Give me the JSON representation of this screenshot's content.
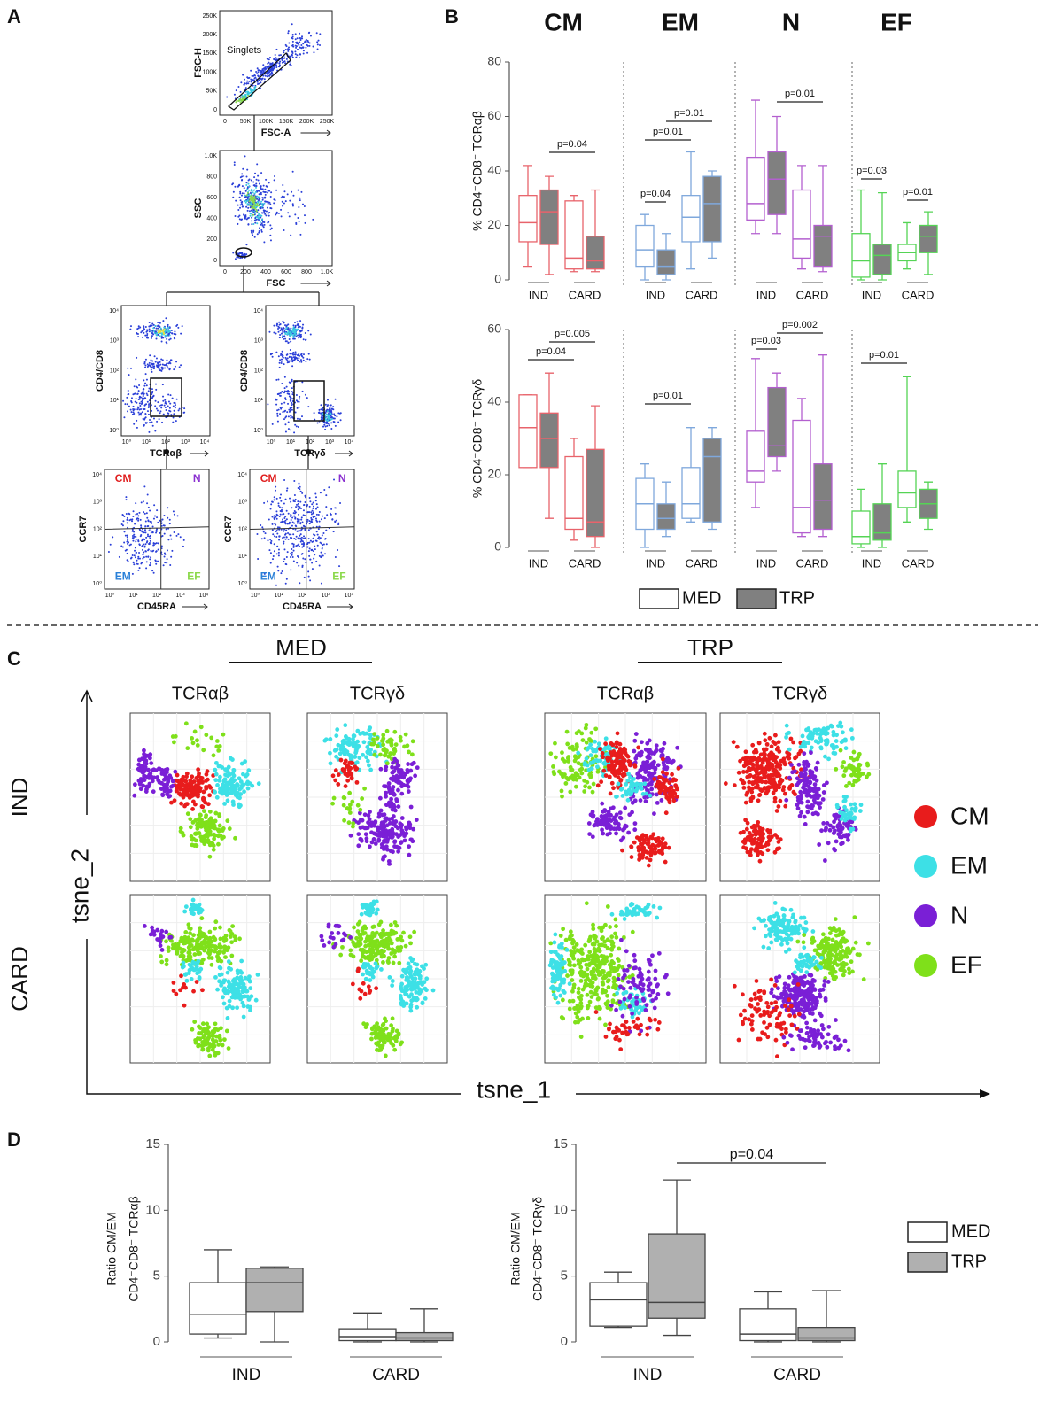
{
  "panel_labels": [
    "A",
    "B",
    "C",
    "D"
  ],
  "panel_a": {
    "plots": [
      {
        "ylabel": "FSC-H",
        "xlabel": "FSC-A",
        "gate": "Singlets",
        "yticks": [
          "250K",
          "200K",
          "150K",
          "100K",
          "50K",
          "0"
        ],
        "xticks": [
          "0",
          "50K",
          "100K",
          "150K",
          "200K",
          "250K"
        ]
      },
      {
        "ylabel": "SSC",
        "xlabel": "FSC",
        "yticks": [
          "1.0K",
          "800",
          "600",
          "400",
          "200",
          "0"
        ],
        "xticks": [
          "0",
          "200",
          "400",
          "600",
          "800",
          "1.0K"
        ]
      },
      {
        "ylabel": "CD4/CD8",
        "xlabel": "TCRαβ",
        "yticks": [
          "10⁴",
          "10³",
          "10²",
          "10¹",
          "10⁰"
        ],
        "xticks": [
          "10⁰",
          "10¹",
          "10²",
          "10³",
          "10⁴"
        ]
      },
      {
        "ylabel": "CD4/CD8",
        "xlabel": "TCRγδ",
        "yticks": [
          "10⁴",
          "10³",
          "10²",
          "10¹",
          "10⁰"
        ],
        "xticks": [
          "10⁰",
          "10¹",
          "10²",
          "10³",
          "10⁴"
        ]
      },
      {
        "ylabel": "CCR7",
        "xlabel": "CD45RA",
        "quadrants": [
          "CM",
          "N",
          "EM",
          "EF"
        ],
        "yticks": [
          "10⁴",
          "10³",
          "10²",
          "10¹",
          "10⁰"
        ],
        "xticks": [
          "10⁰",
          "10¹",
          "10²",
          "10³",
          "10⁴"
        ]
      },
      {
        "ylabel": "CCR7",
        "xlabel": "CD45RA",
        "quadrants": [
          "CM",
          "N",
          "EM",
          "EF"
        ],
        "yticks": [
          "10⁴",
          "10³",
          "10²",
          "10¹",
          "10⁰"
        ],
        "xticks": [
          "10⁰",
          "10¹",
          "10²",
          "10³",
          "10⁴"
        ]
      }
    ]
  },
  "panel_c": {
    "columns": [
      "MED",
      "TRP"
    ],
    "subcolumns": [
      "TCRαβ",
      "TCRγδ"
    ],
    "rows": [
      "IND",
      "CARD"
    ],
    "xlabel": "tsne_1",
    "ylabel": "tsne_2",
    "legend": [
      {
        "name": "CM",
        "color": "#e81c1c"
      },
      {
        "name": "EM",
        "color": "#3de0e6"
      },
      {
        "name": "N",
        "color": "#7a1fd6"
      },
      {
        "name": "EF",
        "color": "#7fe01a"
      }
    ]
  },
  "chart_data": [
    {
      "type": "box",
      "ylabel": "% CD4⁻CD8⁻ TCRαβ",
      "groups": [
        "CM",
        "EM",
        "N",
        "EF"
      ],
      "group_colors": [
        "#e8636b",
        "#7fa8dc",
        "#b35fcf",
        "#55d455"
      ],
      "categories": [
        "IND",
        "CARD"
      ],
      "series": [
        {
          "color": "#ffffff"
        },
        {
          "color": "#808080"
        }
      ],
      "ylim": [
        0,
        80
      ],
      "yticks": [
        0,
        20,
        40,
        60,
        80
      ],
      "boxes": [
        [
          [
            {
              "min": 5,
              "q1": 14,
              "median": 21,
              "q3": 31,
              "max": 42
            },
            {
              "min": 2,
              "q1": 13,
              "median": 25,
              "q3": 33,
              "max": 38
            }
          ],
          [
            {
              "min": 3,
              "q1": 4,
              "median": 8,
              "q3": 29,
              "max": 31
            },
            {
              "min": 3,
              "q1": 4,
              "median": 7,
              "q3": 16,
              "max": 33
            }
          ]
        ],
        [
          [
            {
              "min": 0,
              "q1": 5,
              "median": 11,
              "q3": 20,
              "max": 24
            },
            {
              "min": 0,
              "q1": 2,
              "median": 5,
              "q3": 11,
              "max": 17
            }
          ],
          [
            {
              "min": 4,
              "q1": 14,
              "median": 23,
              "q3": 31,
              "max": 47
            },
            {
              "min": 8,
              "q1": 14,
              "median": 28,
              "q3": 38,
              "max": 40
            }
          ]
        ],
        [
          [
            {
              "min": 17,
              "q1": 22,
              "median": 28,
              "q3": 45,
              "max": 66
            },
            {
              "min": 17,
              "q1": 24,
              "median": 37,
              "q3": 47,
              "max": 60
            }
          ],
          [
            {
              "min": 4,
              "q1": 8,
              "median": 15,
              "q3": 33,
              "max": 42
            },
            {
              "min": 3,
              "q1": 5,
              "median": 16,
              "q3": 20,
              "max": 42
            }
          ]
        ],
        [
          [
            {
              "min": 0,
              "q1": 1,
              "median": 7,
              "q3": 17,
              "max": 33
            },
            {
              "min": 0,
              "q1": 2,
              "median": 9,
              "q3": 13,
              "max": 32
            }
          ],
          [
            {
              "min": 4,
              "q1": 7,
              "median": 10,
              "q3": 13,
              "max": 21
            },
            {
              "min": 2,
              "q1": 10,
              "median": 16,
              "q3": 20,
              "max": 25
            }
          ]
        ]
      ],
      "annotations": [
        "p=0.04",
        "p=0.04",
        "p=0.01",
        "p=0.01",
        "p=0.01",
        "p=0.03",
        "p=0.01"
      ]
    },
    {
      "type": "box",
      "ylabel": "% CD4⁻CD8⁻ TCRγδ",
      "group_colors": [
        "#e8636b",
        "#7fa8dc",
        "#b35fcf",
        "#55d455"
      ],
      "categories": [
        "IND",
        "CARD"
      ],
      "series": [
        {
          "name": "MED",
          "color": "#ffffff"
        },
        {
          "name": "TRP",
          "color": "#808080"
        }
      ],
      "ylim": [
        0,
        60
      ],
      "yticks": [
        0,
        20,
        40,
        60
      ],
      "boxes": [
        [
          [
            {
              "min": 22,
              "q1": 22,
              "median": 33,
              "q3": 42,
              "max": 42
            },
            {
              "min": 8,
              "q1": 22,
              "median": 30,
              "q3": 37,
              "max": 48
            }
          ],
          [
            {
              "min": 2,
              "q1": 5,
              "median": 8,
              "q3": 25,
              "max": 30
            },
            {
              "min": 0,
              "q1": 3,
              "median": 7,
              "q3": 27,
              "max": 39
            }
          ]
        ],
        [
          [
            {
              "min": 0,
              "q1": 5,
              "median": 12,
              "q3": 19,
              "max": 23
            },
            {
              "min": 3,
              "q1": 5,
              "median": 8,
              "q3": 12,
              "max": 18
            }
          ],
          [
            {
              "min": 7,
              "q1": 8,
              "median": 12,
              "q3": 22,
              "max": 33
            },
            {
              "min": 5,
              "q1": 7,
              "median": 25,
              "q3": 30,
              "max": 33
            }
          ]
        ],
        [
          [
            {
              "min": 11,
              "q1": 18,
              "median": 21,
              "q3": 32,
              "max": 52
            },
            {
              "min": 21,
              "q1": 25,
              "median": 28,
              "q3": 44,
              "max": 48
            }
          ],
          [
            {
              "min": 3,
              "q1": 4,
              "median": 11,
              "q3": 35,
              "max": 41
            },
            {
              "min": 3,
              "q1": 5,
              "median": 13,
              "q3": 23,
              "max": 53
            }
          ]
        ],
        [
          [
            {
              "min": 0,
              "q1": 1,
              "median": 3,
              "q3": 10,
              "max": 16
            },
            {
              "min": 0,
              "q1": 2,
              "median": 4,
              "q3": 12,
              "max": 23
            }
          ],
          [
            {
              "min": 7,
              "q1": 11,
              "median": 15,
              "q3": 21,
              "max": 47
            },
            {
              "min": 5,
              "q1": 8,
              "median": 12,
              "q3": 16,
              "max": 18
            }
          ]
        ]
      ],
      "annotations": [
        "p=0.04",
        "p=0.005",
        "p=0.01",
        "p=0.03",
        "p=0.002",
        "p=0.01"
      ]
    },
    {
      "type": "box",
      "ylabel": [
        "Ratio CM/EM",
        "CD4⁻CD8⁻ TCRαβ"
      ],
      "categories": [
        "IND",
        "CARD"
      ],
      "series": [
        {
          "color": "#ffffff"
        },
        {
          "color": "#b0b0b0"
        }
      ],
      "ylim": [
        0,
        15
      ],
      "yticks": [
        0,
        5,
        10,
        15
      ],
      "boxes": [
        [
          {
            "min": 0.3,
            "q1": 0.6,
            "median": 2.1,
            "q3": 4.5,
            "max": 7
          },
          {
            "min": 0,
            "q1": 2.3,
            "median": 4.5,
            "q3": 5.6,
            "max": 5.7
          }
        ],
        [
          {
            "min": 0,
            "q1": 0.1,
            "median": 0.4,
            "q3": 1,
            "max": 2.2
          },
          {
            "min": 0,
            "q1": 0.1,
            "median": 0.3,
            "q3": 0.7,
            "max": 2.5
          }
        ]
      ]
    },
    {
      "type": "box",
      "ylabel": [
        "Ratio CM/EM",
        "CD4⁻CD8⁻ TCRγδ"
      ],
      "categories": [
        "IND",
        "CARD"
      ],
      "series": [
        {
          "name": "MED",
          "color": "#ffffff"
        },
        {
          "name": "TRP",
          "color": "#b0b0b0"
        }
      ],
      "ylim": [
        0,
        15
      ],
      "yticks": [
        0,
        5,
        10,
        15
      ],
      "boxes": [
        [
          {
            "min": 1.1,
            "q1": 1.2,
            "median": 3.2,
            "q3": 4.5,
            "max": 5.3
          },
          {
            "min": 0.5,
            "q1": 1.8,
            "median": 3,
            "q3": 8.2,
            "max": 12.3
          }
        ],
        [
          {
            "min": 0,
            "q1": 0.1,
            "median": 0.6,
            "q3": 2.5,
            "max": 3.8
          },
          {
            "min": 0,
            "q1": 0.1,
            "median": 0.3,
            "q3": 1.1,
            "max": 3.9
          }
        ]
      ],
      "annotations": [
        "p=0.04"
      ]
    }
  ]
}
